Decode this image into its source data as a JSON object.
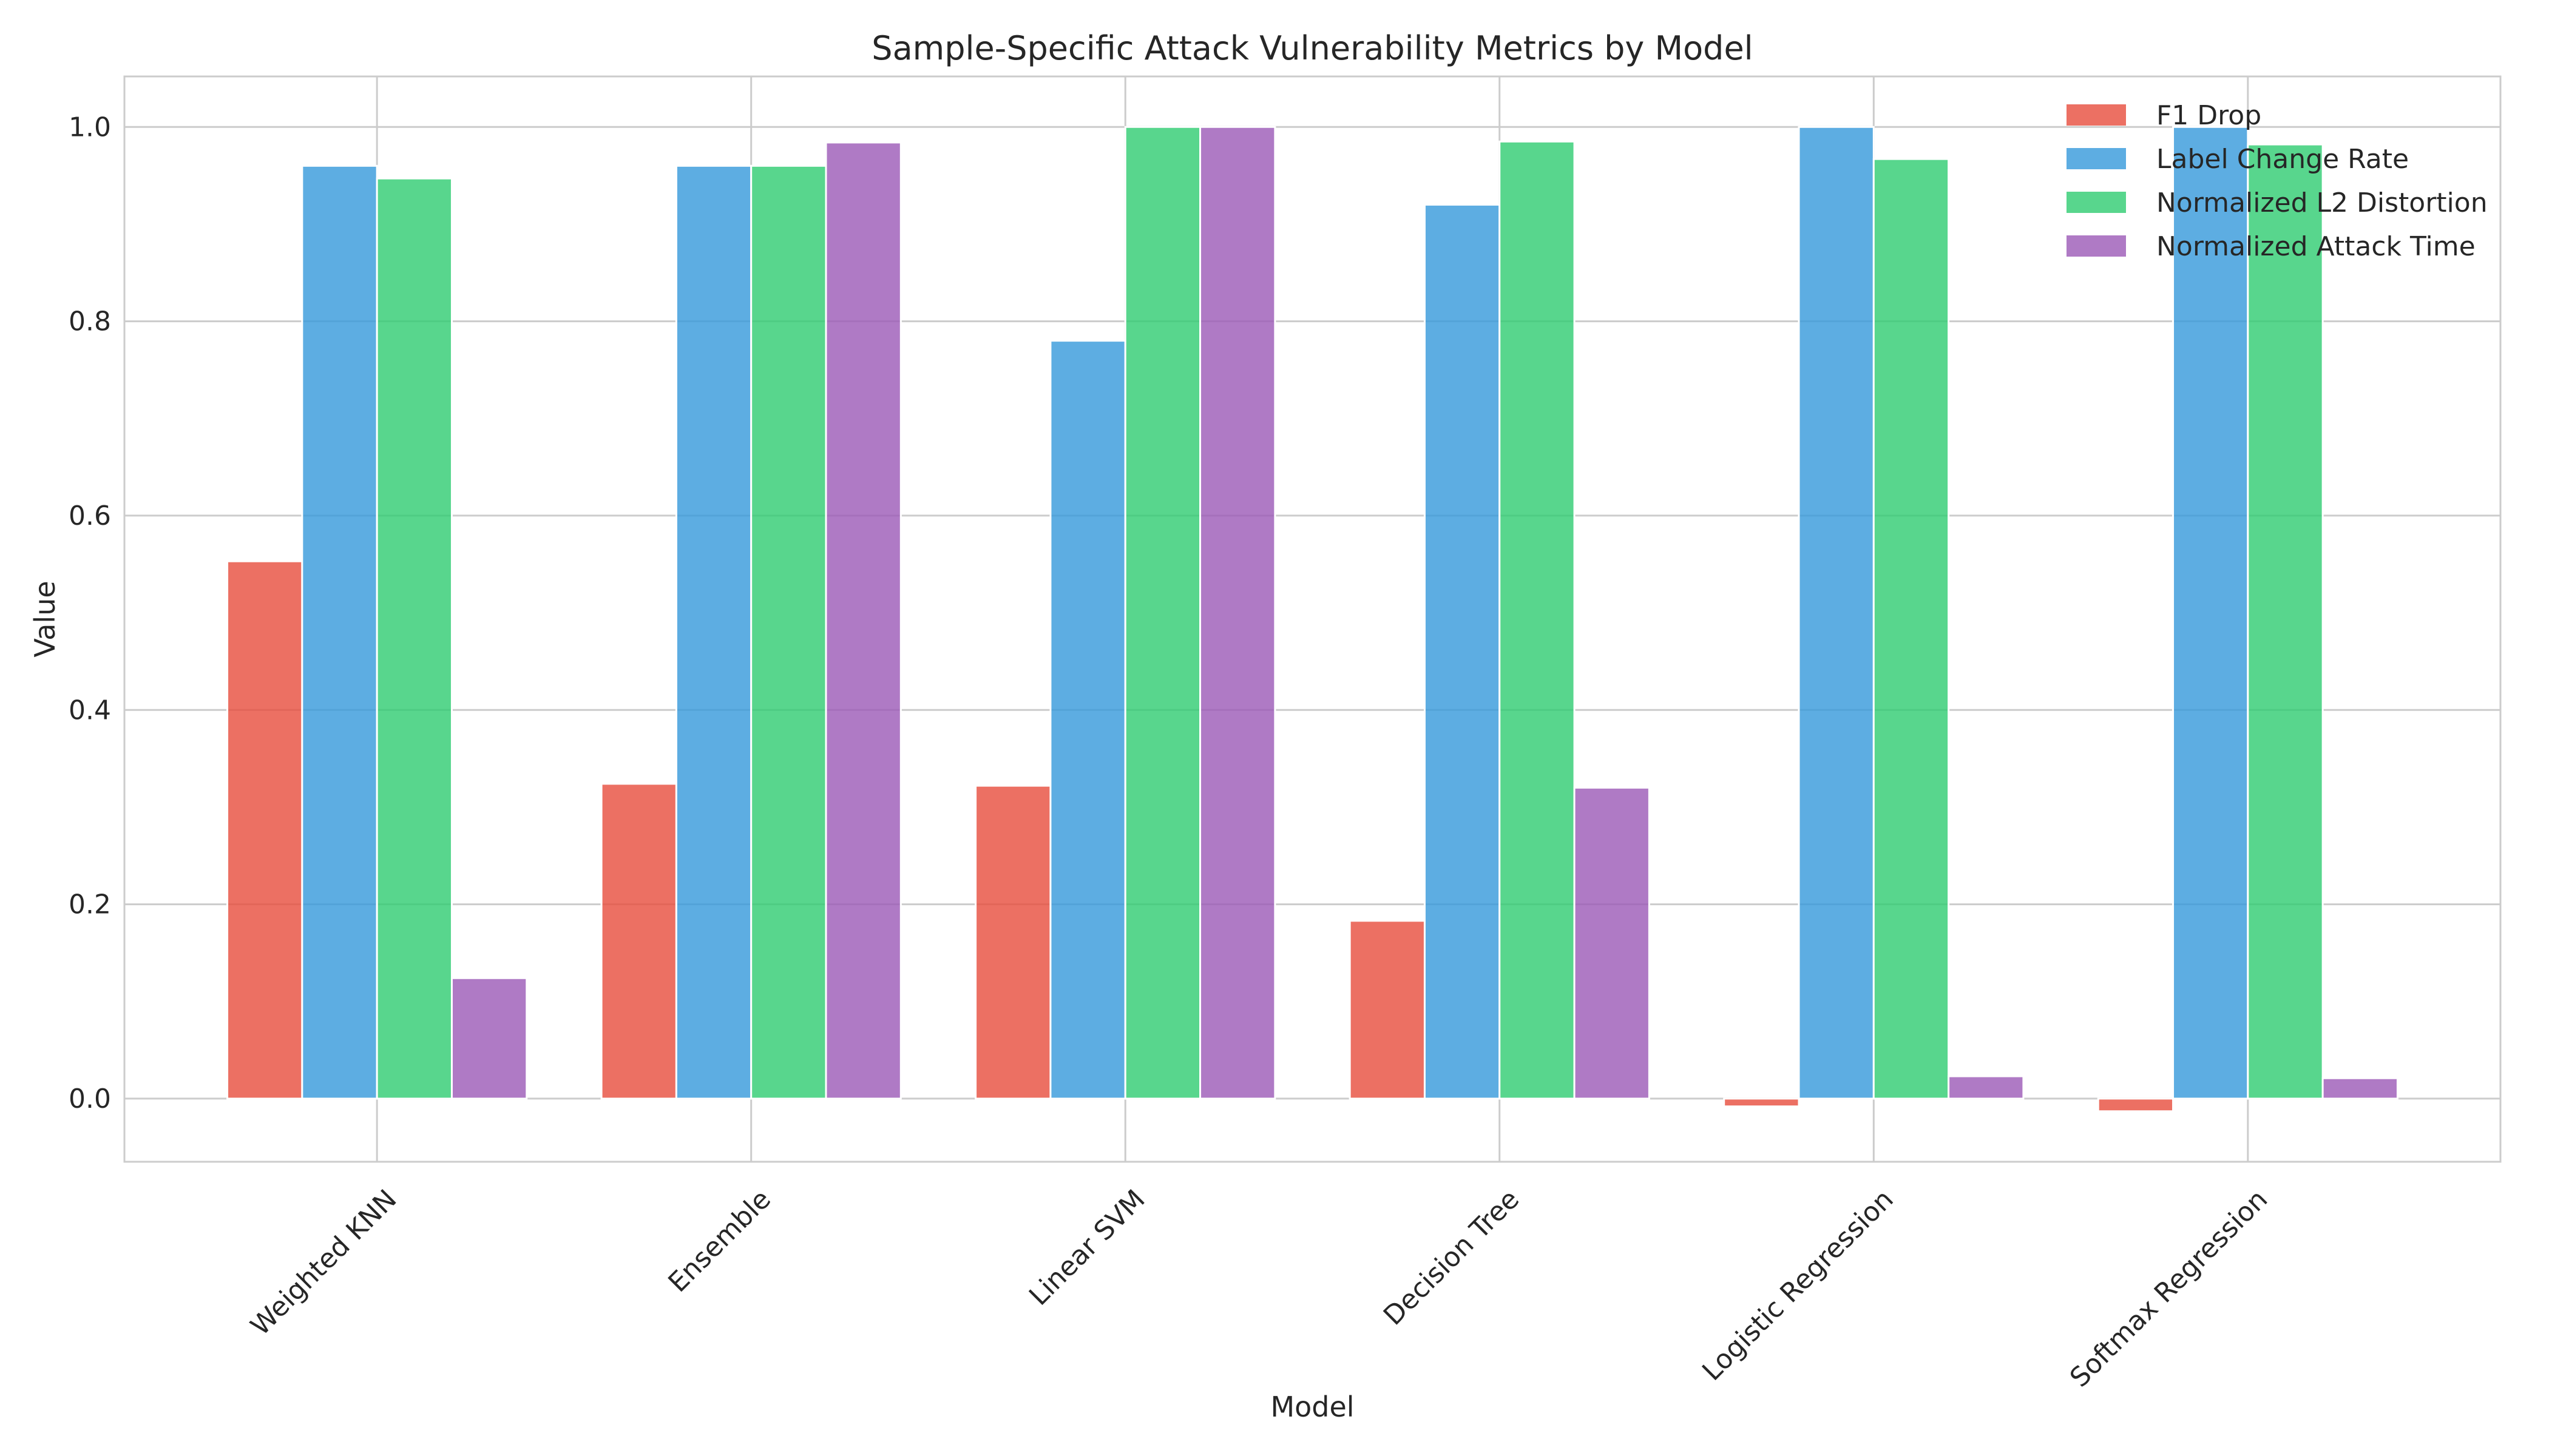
{
  "chart_data": {
    "type": "bar",
    "title": "Sample-Specific Attack Vulnerability Metrics by Model",
    "xlabel": "Model",
    "ylabel": "Value",
    "categories": [
      "Weighted KNN",
      "Ensemble",
      "Linear SVM",
      "Decision Tree",
      "Logistic Regression",
      "Softmax Regression"
    ],
    "series": [
      {
        "name": "F1 Drop",
        "color": "#e74c3c",
        "values": [
          0.553,
          0.324,
          0.322,
          0.183,
          -0.008,
          -0.013
        ]
      },
      {
        "name": "Label Change Rate",
        "color": "#3498db",
        "values": [
          0.96,
          0.96,
          0.78,
          0.92,
          1.0,
          1.0
        ]
      },
      {
        "name": "Normalized L2 Distortion",
        "color": "#2ecc71",
        "values": [
          0.947,
          0.96,
          1.0,
          0.985,
          0.967,
          0.982
        ]
      },
      {
        "name": "Normalized Attack Time",
        "color": "#9b59b6",
        "values": [
          0.124,
          0.984,
          1.0,
          0.32,
          0.023,
          0.021
        ]
      }
    ],
    "ylim": [
      -0.065,
      1.052
    ],
    "yticks": [
      0.0,
      0.2,
      0.4,
      0.6,
      0.8,
      1.0
    ],
    "ytick_labels": [
      "0.0",
      "0.2",
      "0.4",
      "0.6",
      "0.8",
      "1.0"
    ],
    "grid": true,
    "legend_position": "top-right",
    "bar_opacity": 0.8
  }
}
